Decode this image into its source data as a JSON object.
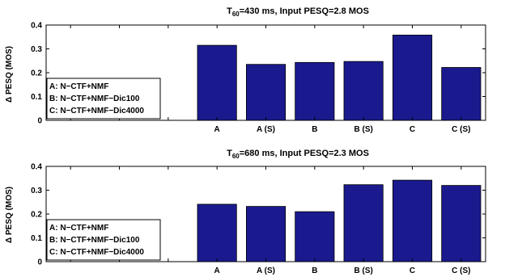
{
  "chart_data": [
    {
      "type": "bar",
      "title_main": "T",
      "title_sub": "60",
      "title_rest": "=430 ms, Input PESQ=2.8 MOS",
      "ylabel": "Δ PESQ (MOS)",
      "categories": [
        "A",
        "A (S)",
        "B",
        "B (S)",
        "C",
        "C (S)"
      ],
      "values": [
        0.315,
        0.235,
        0.243,
        0.247,
        0.358,
        0.222
      ],
      "ylim": [
        0,
        0.4
      ],
      "yticks": [
        "0",
        "0.1",
        "0.2",
        "0.3",
        "0.4"
      ],
      "legend": [
        "A: N−CTF+NMF",
        "B: N−CTF+NMF−Dic100",
        "C: N−CTF+NMF−Dic4000"
      ],
      "legend_position": "bottom-left",
      "bar_color": "#1a1a8e"
    },
    {
      "type": "bar",
      "title_main": "T",
      "title_sub": "60",
      "title_rest": "=680 ms, Input PESQ=2.3 MOS",
      "ylabel": "Δ PESQ (MOS)",
      "categories": [
        "A",
        "A (S)",
        "B",
        "B (S)",
        "C",
        "C (S)"
      ],
      "values": [
        0.241,
        0.232,
        0.21,
        0.323,
        0.342,
        0.32
      ],
      "ylim": [
        0,
        0.4
      ],
      "yticks": [
        "0",
        "0.1",
        "0.2",
        "0.3",
        "0.4"
      ],
      "legend": [
        "A: N−CTF+NMF",
        "B: N−CTF+NMF−Dic100",
        "C: N−CTF+NMF−Dic4000"
      ],
      "legend_position": "bottom-left",
      "bar_color": "#1a1a8e"
    }
  ]
}
